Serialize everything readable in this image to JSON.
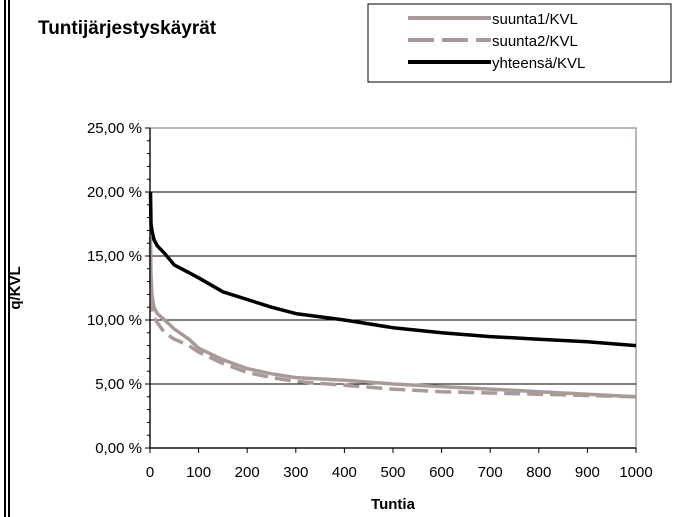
{
  "chart_data": {
    "type": "line",
    "title": "Tuntijärjestyskäyrät",
    "xlabel": "Tuntia",
    "ylabel": "q/KVL",
    "xlim": [
      0,
      1000
    ],
    "ylim": [
      0,
      25
    ],
    "x_ticks": [
      "0",
      "100",
      "200",
      "300",
      "400",
      "500",
      "600",
      "700",
      "800",
      "900",
      "1000"
    ],
    "y_ticks": [
      "0,00 %",
      "5,00 %",
      "10,00 %",
      "15,00 %",
      "20,00 %",
      "25,00 %"
    ],
    "grid": "horizontal",
    "legend_position": "top-right",
    "series": [
      {
        "name": "suunta1/KVL",
        "color": "#a89a98",
        "style": "solid",
        "x": [
          1,
          2,
          4,
          8,
          15,
          30,
          50,
          80,
          100,
          150,
          200,
          250,
          300,
          400,
          500,
          600,
          700,
          800,
          900,
          1000
        ],
        "y": [
          16.5,
          13.5,
          12,
          11,
          10.5,
          10,
          9.3,
          8.5,
          7.8,
          6.9,
          6.2,
          5.8,
          5.5,
          5.3,
          5.0,
          4.8,
          4.6,
          4.4,
          4.2,
          4.0
        ]
      },
      {
        "name": "suunta2/KVL",
        "color": "#a89a98",
        "style": "dashed",
        "x": [
          1,
          2,
          4,
          8,
          15,
          30,
          50,
          80,
          100,
          150,
          200,
          250,
          300,
          400,
          500,
          600,
          700,
          800,
          900,
          1000
        ],
        "y": [
          15.5,
          12,
          10.8,
          10.2,
          9.8,
          9,
          8.5,
          8,
          7.5,
          6.6,
          5.9,
          5.5,
          5.2,
          4.9,
          4.6,
          4.4,
          4.3,
          4.2,
          4.1,
          4.0
        ]
      },
      {
        "name": "yhteensä/KVL",
        "color": "#000000",
        "style": "solid",
        "x": [
          1,
          2,
          4,
          8,
          15,
          30,
          50,
          65,
          100,
          150,
          200,
          250,
          300,
          400,
          500,
          600,
          700,
          800,
          900,
          1000
        ],
        "y": [
          20,
          17.5,
          17,
          16.3,
          15.8,
          15.2,
          14.3,
          14,
          13.3,
          12.2,
          11.6,
          11,
          10.5,
          10,
          9.4,
          9.0,
          8.7,
          8.5,
          8.3,
          8.0
        ]
      }
    ]
  }
}
